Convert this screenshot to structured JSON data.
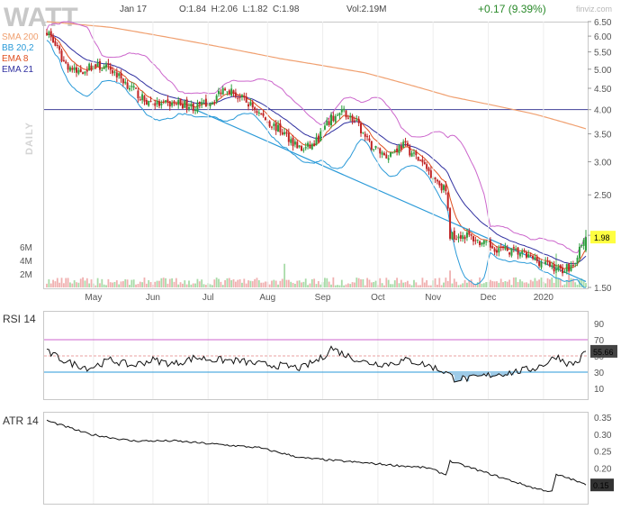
{
  "header": {
    "ticker": "WATT",
    "date": "Jan 17",
    "ohlc": "O:1.84  H:2.06  L:1.82  C:1.98",
    "volume": "Vol:2.19M",
    "change": "+0.17 (9.39%)",
    "watermark": "finviz.com",
    "period_label": "DAILY"
  },
  "colors": {
    "up": "#2e9e3e",
    "down": "#c02424",
    "sma200": "#f0a070",
    "bb": "#cc66cc",
    "ema8": "#e05020",
    "ema21": "#3030a0",
    "trendline": "#2a9ad8",
    "hline": "#40409a",
    "price_tag": "#ffff40"
  },
  "chart_data": [
    {
      "type": "candlestick",
      "title": "WATT",
      "y_scale": "log",
      "ylim": [
        1.5,
        6.5
      ],
      "y_ticks": [
        "6.50",
        "6.00",
        "5.50",
        "5.00",
        "4.50",
        "4.00",
        "3.50",
        "3.00",
        "2.50",
        "2.00",
        "1.50"
      ],
      "x_ticks": [
        "May",
        "Jun",
        "Jul",
        "Aug",
        "Sep",
        "Oct",
        "Nov",
        "Dec",
        "2020"
      ],
      "last_price": "1.98",
      "legend": [
        {
          "name": "SMA 200",
          "color": "#f0a070"
        },
        {
          "name": "BB 20,2",
          "color": "#2a9ad8"
        },
        {
          "name": "EMA 8",
          "color": "#e05020"
        },
        {
          "name": "EMA 21",
          "color": "#3030a0"
        }
      ],
      "horizontal_line": 4.0,
      "price_anchors": [
        [
          0,
          6.2
        ],
        [
          8,
          5.2
        ],
        [
          14,
          4.9
        ],
        [
          22,
          5.1
        ],
        [
          30,
          5.0
        ],
        [
          38,
          4.6
        ],
        [
          46,
          4.2
        ],
        [
          54,
          4.1
        ],
        [
          62,
          4.15
        ],
        [
          70,
          4.05
        ],
        [
          78,
          4.2
        ],
        [
          84,
          4.55
        ],
        [
          90,
          4.3
        ],
        [
          96,
          4.1
        ],
        [
          104,
          3.75
        ],
        [
          112,
          3.5
        ],
        [
          120,
          3.2
        ],
        [
          126,
          3.3
        ],
        [
          134,
          3.8
        ],
        [
          140,
          3.95
        ],
        [
          146,
          3.7
        ],
        [
          152,
          3.3
        ],
        [
          160,
          3.1
        ],
        [
          168,
          3.3
        ],
        [
          176,
          3.0
        ],
        [
          184,
          2.7
        ],
        [
          188,
          2.55
        ],
        [
          190,
          2.0
        ],
        [
          198,
          2.0
        ],
        [
          206,
          1.9
        ],
        [
          214,
          1.85
        ],
        [
          222,
          1.82
        ],
        [
          230,
          1.75
        ],
        [
          236,
          1.7
        ],
        [
          242,
          1.65
        ],
        [
          248,
          1.7
        ],
        [
          254,
          1.98
        ]
      ],
      "sma200_anchors": [
        [
          0,
          6.5
        ],
        [
          30,
          6.3
        ],
        [
          70,
          5.8
        ],
        [
          110,
          5.3
        ],
        [
          150,
          4.9
        ],
        [
          190,
          4.3
        ],
        [
          230,
          3.9
        ],
        [
          254,
          3.6
        ]
      ],
      "volume_ticks": [
        "6M",
        "4M",
        "2M"
      ],
      "volume_notes": "mostly low bars, spikes near Aug, Nov and Jan"
    },
    {
      "type": "line",
      "title": "RSI 14",
      "ylim": [
        0,
        100
      ],
      "y_ticks": [
        "90",
        "70",
        "50",
        "30",
        "10"
      ],
      "reference_lines": [
        70,
        50,
        30
      ],
      "last_value": "55.66",
      "anchors": [
        [
          0,
          55
        ],
        [
          10,
          42
        ],
        [
          20,
          35
        ],
        [
          30,
          45
        ],
        [
          40,
          38
        ],
        [
          50,
          45
        ],
        [
          60,
          40
        ],
        [
          70,
          48
        ],
        [
          80,
          45
        ],
        [
          90,
          44
        ],
        [
          100,
          40
        ],
        [
          110,
          38
        ],
        [
          120,
          35
        ],
        [
          130,
          48
        ],
        [
          134,
          60
        ],
        [
          140,
          52
        ],
        [
          150,
          42
        ],
        [
          160,
          40
        ],
        [
          170,
          45
        ],
        [
          180,
          38
        ],
        [
          188,
          30
        ],
        [
          192,
          22
        ],
        [
          200,
          22
        ],
        [
          210,
          27
        ],
        [
          220,
          30
        ],
        [
          230,
          35
        ],
        [
          236,
          42
        ],
        [
          240,
          50
        ],
        [
          246,
          40
        ],
        [
          250,
          42
        ],
        [
          254,
          55.66
        ]
      ]
    },
    {
      "type": "line",
      "title": "ATR 14",
      "ylim": [
        0.1,
        0.35
      ],
      "y_ticks": [
        "0.35",
        "0.30",
        "0.25",
        "0.20",
        "0.15"
      ],
      "last_value": "0.15",
      "anchors": [
        [
          0,
          0.34
        ],
        [
          20,
          0.3
        ],
        [
          40,
          0.28
        ],
        [
          60,
          0.28
        ],
        [
          80,
          0.27
        ],
        [
          100,
          0.26
        ],
        [
          120,
          0.23
        ],
        [
          140,
          0.22
        ],
        [
          160,
          0.21
        ],
        [
          180,
          0.2
        ],
        [
          188,
          0.18
        ],
        [
          190,
          0.22
        ],
        [
          200,
          0.2
        ],
        [
          210,
          0.18
        ],
        [
          220,
          0.16
        ],
        [
          230,
          0.14
        ],
        [
          238,
          0.13
        ],
        [
          240,
          0.18
        ],
        [
          246,
          0.17
        ],
        [
          250,
          0.16
        ],
        [
          254,
          0.15
        ]
      ]
    }
  ]
}
